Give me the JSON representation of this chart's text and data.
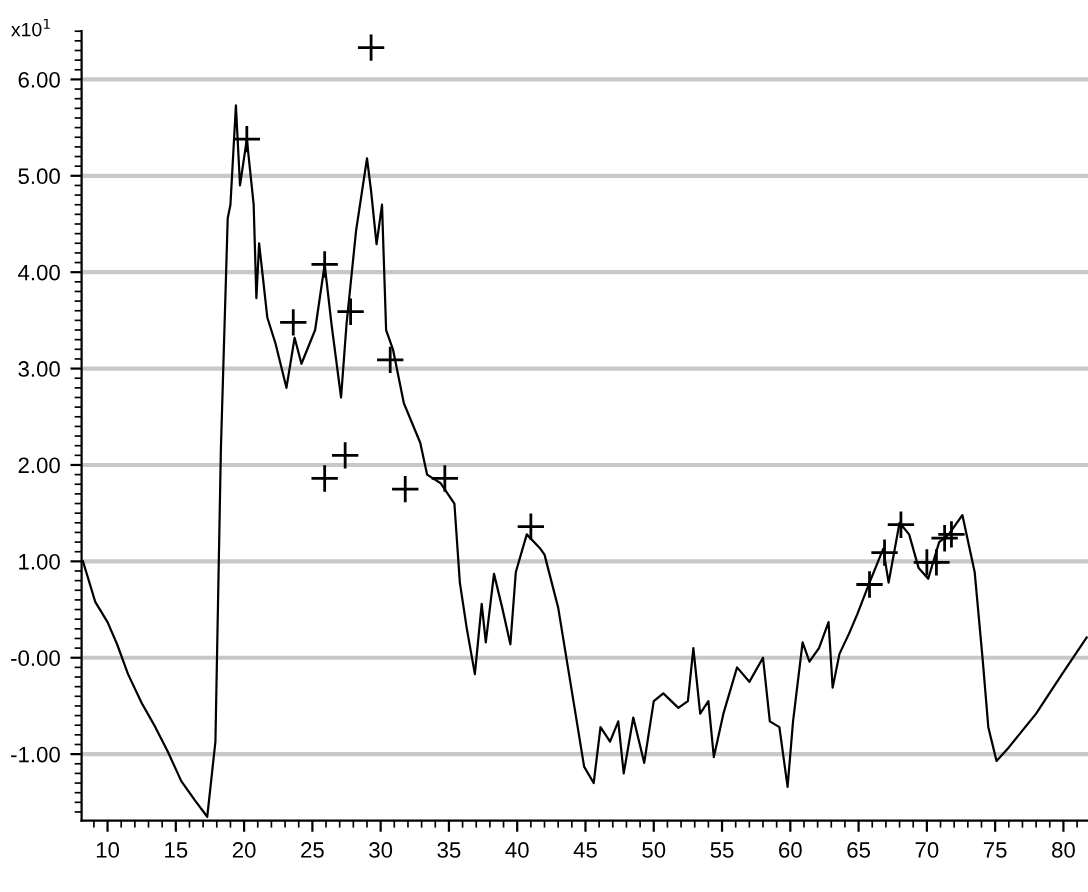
{
  "chart_data": {
    "type": "line",
    "ylabel": "x10$^{1}$",
    "xlim": [
      8.1,
      81.8
    ],
    "ylim": [
      -1.69,
      6.5
    ],
    "xticks": [
      10,
      15,
      20,
      25,
      30,
      35,
      40,
      45,
      50,
      55,
      60,
      65,
      70,
      75,
      80
    ],
    "yticks": [
      {
        "value": -1,
        "label": "-1.00"
      },
      {
        "value": 0,
        "label": "-0.00"
      },
      {
        "value": 1,
        "label": "1.00"
      },
      {
        "value": 2,
        "label": "2.00"
      },
      {
        "value": 3,
        "label": "3.00"
      },
      {
        "value": 4,
        "label": "4.00"
      },
      {
        "value": 5,
        "label": "5.00"
      },
      {
        "value": 6,
        "label": "6.00"
      }
    ],
    "grid": "y",
    "legend": false,
    "series": [
      {
        "color": "#000000",
        "marker": "none",
        "line_style": "solid",
        "x": [
          8.2,
          9.1,
          10.0,
          10.7,
          11.5,
          12.5,
          13.5,
          14.4,
          15.4,
          16.4,
          17.3,
          17.9,
          18.3,
          18.8,
          19.0,
          19.4,
          19.7,
          20.2,
          20.7,
          20.9,
          21.1,
          21.7,
          22.3,
          23.1,
          23.7,
          24.2,
          25.2,
          25.9,
          26.4,
          27.1,
          27.5,
          28.2,
          29.0,
          29.3,
          29.7,
          30.1,
          30.4,
          30.9,
          31.7,
          32.9,
          33.4,
          34.4,
          35.4,
          35.8,
          36.3,
          36.9,
          37.4,
          37.7,
          38.3,
          38.9,
          39.5,
          39.9,
          40.7,
          41.7,
          42.0,
          43.0,
          44.2,
          44.9,
          45.6,
          46.1,
          46.8,
          47.4,
          47.8,
          48.5,
          49.3,
          50.0,
          50.7,
          51.8,
          52.5,
          52.9,
          53.4,
          54.0,
          54.4,
          55.1,
          56.1,
          57.0,
          58.0,
          58.5,
          59.2,
          59.8,
          60.2,
          60.9,
          61.4,
          62.1,
          62.8,
          63.1,
          63.6,
          64.3,
          64.9,
          65.8,
          66.8,
          67.2,
          68.0,
          68.7,
          69.4,
          70.1,
          70.9,
          71.6,
          72.6,
          73.5,
          74.1,
          74.5,
          75.1,
          76.0,
          78.0,
          79.9,
          81.7
        ],
        "values": [
          1.0,
          0.58,
          0.37,
          0.14,
          -0.17,
          -0.47,
          -0.72,
          -0.97,
          -1.28,
          -1.48,
          -1.65,
          -0.87,
          2.16,
          4.56,
          4.7,
          5.73,
          4.9,
          5.38,
          4.7,
          3.73,
          4.3,
          3.53,
          3.26,
          2.8,
          3.32,
          3.05,
          3.4,
          4.08,
          3.46,
          2.7,
          3.46,
          4.43,
          5.18,
          4.84,
          4.29,
          4.7,
          3.4,
          3.2,
          2.64,
          2.23,
          1.9,
          1.81,
          1.6,
          0.78,
          0.31,
          -0.17,
          0.56,
          0.16,
          0.87,
          0.52,
          0.14,
          0.89,
          1.28,
          1.13,
          1.07,
          0.52,
          -0.52,
          -1.13,
          -1.3,
          -0.72,
          -0.87,
          -0.66,
          -1.2,
          -0.62,
          -1.09,
          -0.45,
          -0.37,
          -0.52,
          -0.45,
          0.1,
          -0.58,
          -0.45,
          -1.03,
          -0.58,
          -0.1,
          -0.25,
          0.0,
          -0.66,
          -0.72,
          -1.34,
          -0.66,
          0.16,
          -0.04,
          0.1,
          0.37,
          -0.31,
          0.04,
          0.25,
          0.45,
          0.78,
          1.13,
          0.78,
          1.4,
          1.28,
          0.93,
          0.82,
          1.2,
          1.28,
          1.48,
          0.89,
          -0.04,
          -0.72,
          -1.07,
          -0.93,
          -0.58,
          -0.17,
          0.21
        ]
      },
      {
        "type": "scatter",
        "color": "#000000",
        "marker": "cross",
        "x": [
          29.3,
          20.2,
          25.9,
          23.6,
          27.8,
          30.7,
          25.9,
          27.4,
          31.8,
          34.7,
          41.0,
          65.8,
          66.9,
          68.1,
          70.0,
          70.7,
          71.3,
          71.8
        ],
        "values": [
          6.33,
          5.38,
          4.08,
          3.48,
          3.59,
          3.09,
          1.86,
          2.1,
          1.75,
          1.86,
          1.36,
          0.76,
          1.09,
          1.38,
          0.99,
          0.99,
          1.24,
          1.28
        ]
      }
    ]
  }
}
